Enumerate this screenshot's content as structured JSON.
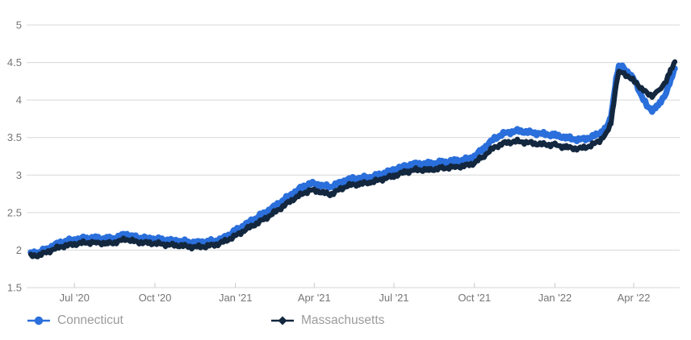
{
  "chart_data": {
    "type": "line",
    "title": "",
    "xlabel": "",
    "ylabel": "",
    "grid": true,
    "legend_position": "bottom-left",
    "y_axis": {
      "min": 1.5,
      "max": 5,
      "step": 0.5,
      "tick_labels": [
        "1.5",
        "2",
        "2.5",
        "3",
        "3.5",
        "4",
        "4.5",
        "5"
      ]
    },
    "x_axis": {
      "unit": "days-from-start",
      "min": 0,
      "max": 736,
      "ticks": [
        {
          "label": "Jul '20",
          "x": 50
        },
        {
          "label": "Oct '20",
          "x": 142
        },
        {
          "label": "Jan '21",
          "x": 234
        },
        {
          "label": "Apr '21",
          "x": 324
        },
        {
          "label": "Jul '21",
          "x": 415
        },
        {
          "label": "Oct '21",
          "x": 507
        },
        {
          "label": "Jan '22",
          "x": 599
        },
        {
          "label": "Apr '22",
          "x": 689
        }
      ]
    },
    "series": [
      {
        "name": "Connecticut",
        "color": "#2a6fdb",
        "marker": "circle",
        "points": [
          [
            0,
            1.96
          ],
          [
            8,
            1.97
          ],
          [
            16,
            2.0
          ],
          [
            26,
            2.06
          ],
          [
            36,
            2.11
          ],
          [
            50,
            2.14
          ],
          [
            62,
            2.16
          ],
          [
            75,
            2.16
          ],
          [
            88,
            2.15
          ],
          [
            100,
            2.17
          ],
          [
            108,
            2.22
          ],
          [
            116,
            2.18
          ],
          [
            128,
            2.16
          ],
          [
            142,
            2.15
          ],
          [
            158,
            2.13
          ],
          [
            172,
            2.12
          ],
          [
            186,
            2.1
          ],
          [
            200,
            2.11
          ],
          [
            214,
            2.13
          ],
          [
            222,
            2.17
          ],
          [
            234,
            2.26
          ],
          [
            248,
            2.36
          ],
          [
            262,
            2.46
          ],
          [
            276,
            2.56
          ],
          [
            288,
            2.66
          ],
          [
            300,
            2.76
          ],
          [
            312,
            2.85
          ],
          [
            320,
            2.89
          ],
          [
            330,
            2.87
          ],
          [
            342,
            2.84
          ],
          [
            352,
            2.89
          ],
          [
            362,
            2.94
          ],
          [
            375,
            2.96
          ],
          [
            388,
            2.97
          ],
          [
            400,
            3.01
          ],
          [
            415,
            3.07
          ],
          [
            428,
            3.12
          ],
          [
            440,
            3.15
          ],
          [
            455,
            3.15
          ],
          [
            470,
            3.17
          ],
          [
            485,
            3.19
          ],
          [
            495,
            3.2
          ],
          [
            507,
            3.25
          ],
          [
            518,
            3.36
          ],
          [
            530,
            3.49
          ],
          [
            542,
            3.56
          ],
          [
            556,
            3.59
          ],
          [
            570,
            3.57
          ],
          [
            584,
            3.55
          ],
          [
            599,
            3.53
          ],
          [
            612,
            3.5
          ],
          [
            626,
            3.47
          ],
          [
            640,
            3.5
          ],
          [
            650,
            3.56
          ],
          [
            658,
            3.63
          ],
          [
            663,
            3.77
          ],
          [
            666,
            4.02
          ],
          [
            669,
            4.28
          ],
          [
            672,
            4.43
          ],
          [
            676,
            4.45
          ],
          [
            680,
            4.4
          ],
          [
            686,
            4.32
          ],
          [
            692,
            4.22
          ],
          [
            698,
            4.05
          ],
          [
            704,
            3.92
          ],
          [
            710,
            3.87
          ],
          [
            715,
            3.9
          ],
          [
            720,
            3.98
          ],
          [
            726,
            4.1
          ],
          [
            731,
            4.25
          ],
          [
            736,
            4.42
          ]
        ]
      },
      {
        "name": "Massachusetts",
        "color": "#13273f",
        "marker": "diamond",
        "points": [
          [
            0,
            1.92
          ],
          [
            8,
            1.93
          ],
          [
            16,
            1.96
          ],
          [
            26,
            2.01
          ],
          [
            36,
            2.05
          ],
          [
            50,
            2.08
          ],
          [
            62,
            2.1
          ],
          [
            75,
            2.1
          ],
          [
            88,
            2.09
          ],
          [
            100,
            2.11
          ],
          [
            108,
            2.15
          ],
          [
            116,
            2.12
          ],
          [
            128,
            2.1
          ],
          [
            142,
            2.09
          ],
          [
            158,
            2.07
          ],
          [
            172,
            2.06
          ],
          [
            186,
            2.04
          ],
          [
            200,
            2.05
          ],
          [
            214,
            2.08
          ],
          [
            222,
            2.12
          ],
          [
            234,
            2.19
          ],
          [
            248,
            2.29
          ],
          [
            262,
            2.38
          ],
          [
            276,
            2.48
          ],
          [
            288,
            2.58
          ],
          [
            300,
            2.68
          ],
          [
            312,
            2.76
          ],
          [
            320,
            2.8
          ],
          [
            330,
            2.78
          ],
          [
            342,
            2.74
          ],
          [
            352,
            2.8
          ],
          [
            362,
            2.86
          ],
          [
            375,
            2.88
          ],
          [
            388,
            2.9
          ],
          [
            400,
            2.94
          ],
          [
            415,
            2.99
          ],
          [
            428,
            3.04
          ],
          [
            440,
            3.07
          ],
          [
            455,
            3.07
          ],
          [
            470,
            3.09
          ],
          [
            485,
            3.11
          ],
          [
            495,
            3.12
          ],
          [
            507,
            3.16
          ],
          [
            518,
            3.26
          ],
          [
            530,
            3.37
          ],
          [
            542,
            3.43
          ],
          [
            556,
            3.45
          ],
          [
            570,
            3.43
          ],
          [
            584,
            3.41
          ],
          [
            599,
            3.4
          ],
          [
            612,
            3.37
          ],
          [
            626,
            3.35
          ],
          [
            640,
            3.39
          ],
          [
            650,
            3.46
          ],
          [
            658,
            3.55
          ],
          [
            663,
            3.7
          ],
          [
            666,
            3.95
          ],
          [
            669,
            4.2
          ],
          [
            672,
            4.36
          ],
          [
            676,
            4.37
          ],
          [
            680,
            4.34
          ],
          [
            686,
            4.28
          ],
          [
            692,
            4.23
          ],
          [
            698,
            4.15
          ],
          [
            704,
            4.09
          ],
          [
            710,
            4.06
          ],
          [
            715,
            4.09
          ],
          [
            720,
            4.16
          ],
          [
            726,
            4.26
          ],
          [
            731,
            4.38
          ],
          [
            736,
            4.51
          ]
        ]
      }
    ],
    "style": {
      "gridline_color": "#d7d7d7",
      "tick_color": "#c9c9c9",
      "axis_label_color": "#757575",
      "legend_text_color": "#9b9b9b",
      "background": "#ffffff"
    }
  }
}
